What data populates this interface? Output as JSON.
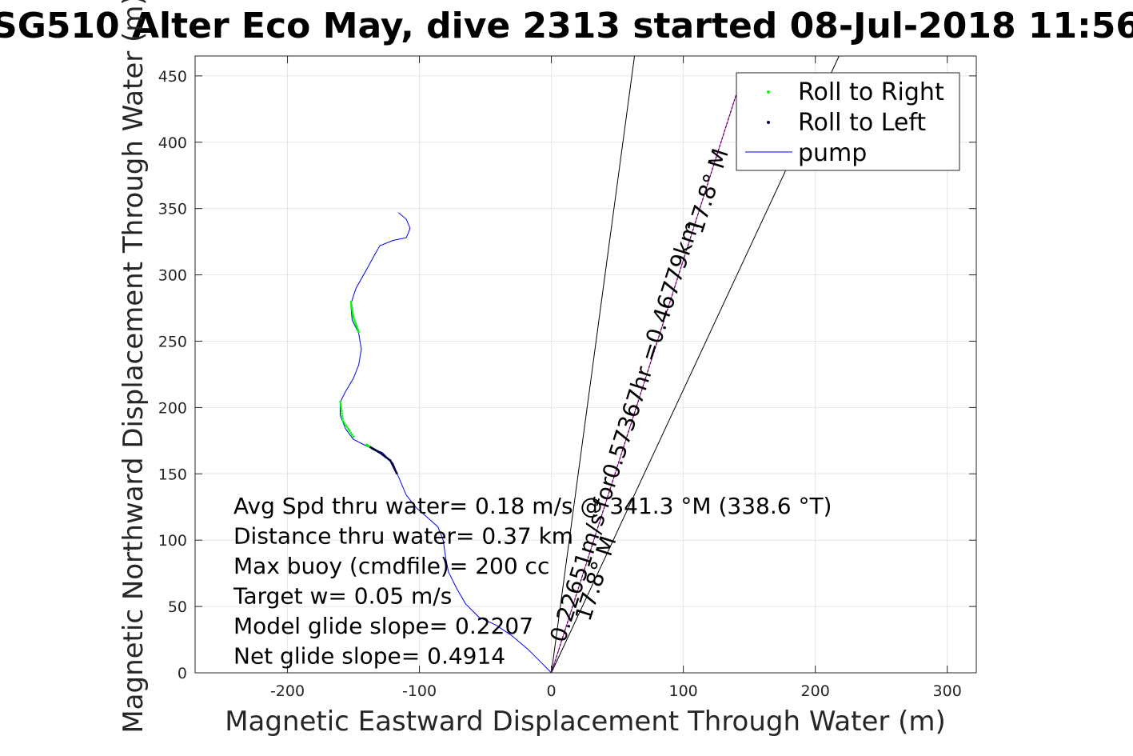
{
  "chart_data": {
    "type": "line",
    "title": "SG510 Alter Eco May, dive 2313 started 08-Jul-2018 11:56",
    "xlabel": "Magnetic Eastward Displacement Through Water (m)",
    "ylabel": "Magnetic Northward Displacement Through Water (m)",
    "xlim": [
      -270,
      322
    ],
    "ylim": [
      0,
      465
    ],
    "xticks": [
      -200,
      -100,
      0,
      100,
      200,
      300
    ],
    "yticks": [
      0,
      50,
      100,
      150,
      200,
      250,
      300,
      350,
      400,
      450
    ],
    "grid": true,
    "legend_position": "top-right",
    "legend": [
      "Roll to Right",
      "Roll to Left",
      "pump"
    ],
    "colors": {
      "track": "#0000ff",
      "roll_right": "#00ff00",
      "roll_left": "#000040",
      "heading_line": "#ff00ff",
      "cone": "#000000"
    },
    "track": {
      "name": "pump",
      "points": [
        [
          0,
          0
        ],
        [
          -8,
          8
        ],
        [
          -18,
          18
        ],
        [
          -30,
          28
        ],
        [
          -42,
          36
        ],
        [
          -55,
          42
        ],
        [
          -65,
          52
        ],
        [
          -72,
          64
        ],
        [
          -78,
          76
        ],
        [
          -80,
          86
        ],
        [
          -82,
          100
        ],
        [
          -86,
          110
        ],
        [
          -95,
          118
        ],
        [
          -102,
          124
        ],
        [
          -110,
          134
        ],
        [
          -116,
          148
        ],
        [
          -120,
          158
        ],
        [
          -128,
          166
        ],
        [
          -140,
          171
        ],
        [
          -150,
          176
        ],
        [
          -156,
          184
        ],
        [
          -160,
          194
        ],
        [
          -160,
          204
        ],
        [
          -156,
          212
        ],
        [
          -150,
          222
        ],
        [
          -146,
          232
        ],
        [
          -144,
          244
        ],
        [
          -146,
          256
        ],
        [
          -151,
          266
        ],
        [
          -152,
          278
        ],
        [
          -148,
          290
        ],
        [
          -140,
          304
        ],
        [
          -134,
          315
        ],
        [
          -130,
          322
        ],
        [
          -120,
          326
        ],
        [
          -110,
          328
        ],
        [
          -107,
          335
        ],
        [
          -110,
          342
        ],
        [
          -116,
          347
        ]
      ]
    },
    "roll_right_segments": [
      [
        [
          -150,
          178
        ],
        [
          -158,
          190
        ],
        [
          -160,
          205
        ]
      ],
      [
        [
          -146,
          257
        ],
        [
          -150,
          268
        ],
        [
          -152,
          280
        ]
      ],
      [
        [
          -140,
          172
        ],
        [
          -134,
          168
        ]
      ]
    ],
    "roll_left_segments": [
      [
        [
          -137,
          170
        ],
        [
          -130,
          166
        ],
        [
          -122,
          160
        ],
        [
          -117,
          150
        ]
      ]
    ],
    "heading_line": {
      "from": [
        0,
        0
      ],
      "to": [
        143,
        445
      ]
    },
    "cone_lines": [
      {
        "from": [
          0,
          0
        ],
        "to": [
          63,
          465
        ]
      },
      {
        "from": [
          0,
          0
        ],
        "to": [
          218,
          465
        ]
      }
    ],
    "rotated_labels": [
      {
        "text": "0.22651m/s for0.57367hr =0.46779km",
        "anchor": [
          10,
          22
        ],
        "angle": 72.2
      },
      {
        "text": "17.8° M",
        "anchor": [
          29,
          38
        ],
        "angle": 72.2
      },
      {
        "text": "17.8° M",
        "anchor": [
          114,
          330
        ],
        "angle": 72.2
      }
    ],
    "annotations": [
      "Avg Spd thru water=  0.18 m/s @ 341.3 °M (338.6 °T)",
      "Distance thru water=  0.37 km",
      "Max buoy (cmdfile)= 200 cc",
      "Target w= 0.05 m/s",
      "Model glide slope= 0.2207",
      "Net glide slope= 0.4914"
    ]
  }
}
